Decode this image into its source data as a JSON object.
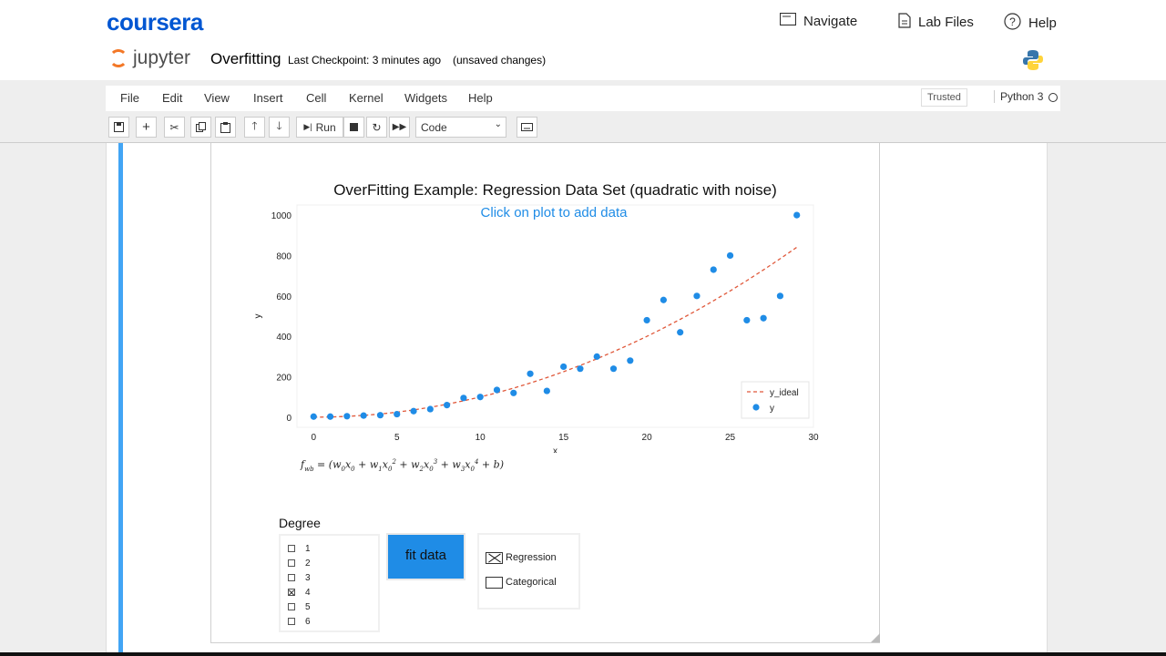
{
  "coursera": {
    "logo": "coursera",
    "nav": [
      {
        "label": "Navigate",
        "icon": "navigate-icon"
      },
      {
        "label": "Lab Files",
        "icon": "file-icon"
      },
      {
        "label": "Help",
        "icon": "help-icon"
      }
    ]
  },
  "jupyter": {
    "logo_text": "jupyter",
    "notebook_title": "Overfitting",
    "checkpoint": "Last Checkpoint: 3 minutes ago",
    "save_status": "(unsaved changes)",
    "menu": [
      "File",
      "Edit",
      "View",
      "Insert",
      "Cell",
      "Kernel",
      "Widgets",
      "Help"
    ],
    "trusted": "Trusted",
    "kernel": "Python 3",
    "toolbar": {
      "run_label": "Run",
      "cell_type": "Code"
    }
  },
  "output": {
    "click_hint": "Click on plot to add data",
    "formula": "f_wb = (w0x0 + w1x0² + w2x0³ + w3x0⁴ + b)",
    "degree_title": "Degree",
    "degrees": [
      {
        "label": "1",
        "checked": false
      },
      {
        "label": "2",
        "checked": false
      },
      {
        "label": "3",
        "checked": false
      },
      {
        "label": "4",
        "checked": true
      },
      {
        "label": "5",
        "checked": false
      },
      {
        "label": "6",
        "checked": false
      }
    ],
    "fit_button": "fit data",
    "types": [
      {
        "label": "Regression",
        "checked": true
      },
      {
        "label": "Categorical",
        "checked": false
      }
    ]
  },
  "chart_data": {
    "type": "scatter",
    "title": "OverFitting Example: Regression Data Set (quadratic with noise)",
    "xlabel": "x",
    "ylabel": "y",
    "xlim": [
      -1,
      30
    ],
    "ylim": [
      -50,
      1050
    ],
    "xticks": [
      0,
      5,
      10,
      15,
      20,
      25,
      30
    ],
    "yticks": [
      0,
      200,
      400,
      600,
      800,
      1000
    ],
    "legend_position": "bottom-right",
    "colors": {
      "points": "#1f8ce6",
      "ideal": "#e0583a"
    },
    "series": [
      {
        "name": "y_ideal",
        "type": "line",
        "style": "dashed",
        "x": [
          0,
          1,
          2,
          3,
          4,
          5,
          6,
          7,
          8,
          9,
          10,
          11,
          12,
          13,
          14,
          15,
          16,
          17,
          18,
          19,
          20,
          21,
          22,
          23,
          24,
          25,
          26,
          27,
          28,
          29
        ],
        "y": [
          0,
          1,
          4,
          9,
          16,
          25,
          36,
          49,
          64,
          81,
          100,
          121,
          144,
          169,
          196,
          225,
          256,
          289,
          324,
          361,
          400,
          441,
          484,
          529,
          576,
          625,
          676,
          729,
          784,
          841
        ]
      },
      {
        "name": "y",
        "type": "scatter",
        "x": [
          0,
          1,
          2,
          3,
          4,
          5,
          6,
          7,
          8,
          9,
          10,
          11,
          12,
          13,
          14,
          15,
          16,
          17,
          18,
          19,
          20,
          21,
          22,
          23,
          24,
          25,
          26,
          27,
          28,
          29
        ],
        "y": [
          3,
          3,
          5,
          8,
          10,
          15,
          30,
          40,
          60,
          95,
          100,
          135,
          120,
          215,
          130,
          250,
          240,
          300,
          240,
          280,
          480,
          580,
          420,
          600,
          730,
          800,
          480,
          490,
          600,
          1000
        ]
      }
    ]
  }
}
